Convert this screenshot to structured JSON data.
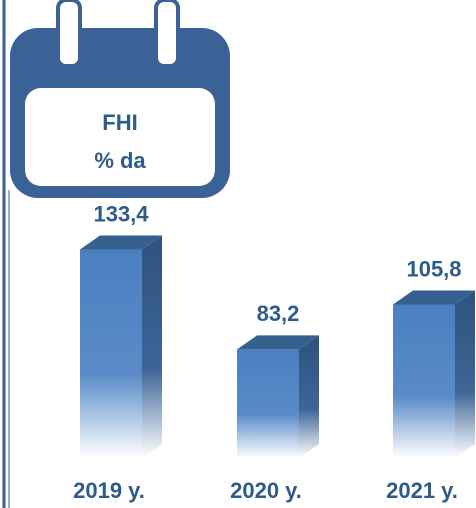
{
  "chart_data": {
    "type": "bar3d",
    "title": "FHI",
    "subtitle": "% da",
    "categories": [
      "2019 y.",
      "2020 y.",
      "2021 y."
    ],
    "values": [
      133.4,
      83.2,
      105.8
    ],
    "value_labels": [
      "133,4",
      "83,2",
      "105,8"
    ],
    "color": "#4a7fc1"
  }
}
